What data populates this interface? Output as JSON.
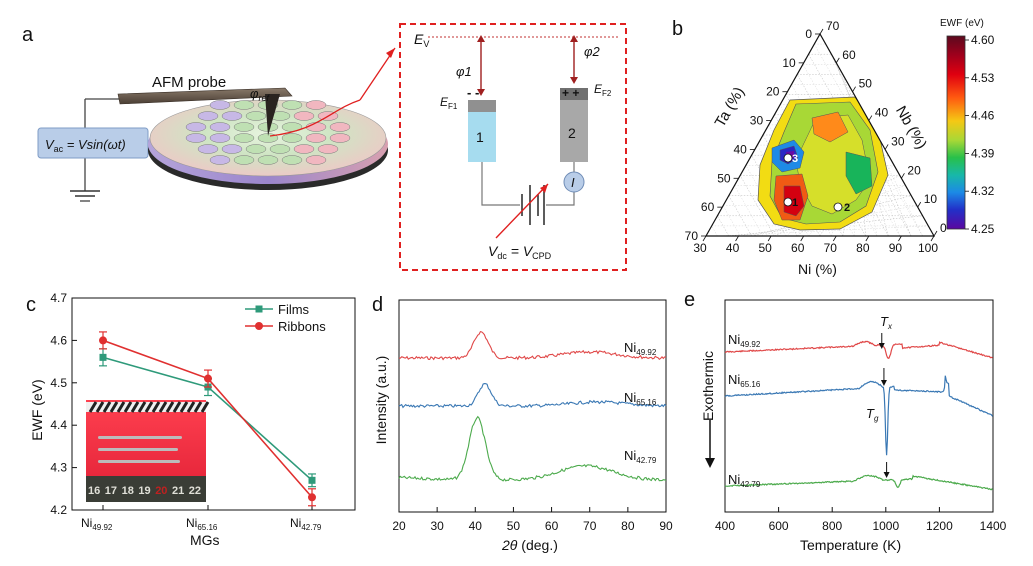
{
  "panels": {
    "a": {
      "letter": "a",
      "afm_probe": "AFM probe",
      "phi_ref": "φ",
      "phi_ref_sub": "ref",
      "vac_lhs": "V",
      "vac_lhs_sub": "ac",
      "vac_rhs": " = Vsin(ωt)",
      "ev": "E",
      "ev_sub": "V",
      "phi1": "φ1",
      "phi2": "φ2",
      "ef1": "E",
      "ef1_sub": "F1",
      "ef2": "E",
      "ef2_sub": "F2",
      "minus_signs": "- -",
      "plus_signs": "+ +",
      "block1": "1",
      "block2": "2",
      "current": "I",
      "vdc": "V",
      "vdc_sub": "dc",
      "vcpd_eq": " = V",
      "vcpd_sub": "CPD"
    },
    "b": {
      "letter": "b",
      "ta_label": "Ta (%)",
      "nb_label": "Nb (%)",
      "ni_label": "Ni (%)",
      "colorbar_title": "EWF (eV)",
      "colorbar_ticks": [
        "4.60",
        "4.53",
        "4.46",
        "4.39",
        "4.32",
        "4.25"
      ],
      "colorbar_values": [
        4.6,
        4.53,
        4.46,
        4.39,
        4.32,
        4.25
      ],
      "ni_ticks": [
        "30",
        "40",
        "50",
        "60",
        "70",
        "80",
        "90",
        "100"
      ],
      "ta_ticks": [
        "0",
        "10",
        "20",
        "30",
        "40",
        "50",
        "60",
        "70"
      ],
      "nb_ticks": [
        "70",
        "60",
        "50",
        "40",
        "30",
        "20",
        "10",
        "0"
      ],
      "points": [
        "1",
        "2",
        "3"
      ],
      "colors": [
        "#6a0d2e",
        "#c2002a",
        "#ff1c0e",
        "#ff7f1a",
        "#f2dc13",
        "#86d04a",
        "#18b45a",
        "#16b4c8",
        "#1e6ae6",
        "#2a26c4",
        "#5b0aa3"
      ]
    },
    "c": {
      "letter": "c",
      "chart_data": {
        "type": "line",
        "categories": [
          "Ni49.92",
          "Ni65.16",
          "Ni42.79"
        ],
        "category_labels": [
          {
            "main": "Ni",
            "sub": "49.92"
          },
          {
            "main": "Ni",
            "sub": "65.16"
          },
          {
            "main": "Ni",
            "sub": "42.79"
          }
        ],
        "series": [
          {
            "name": "Films",
            "values": [
              4.56,
              4.49,
              4.27
            ],
            "errors": [
              0.02,
              0.02,
              0.015
            ],
            "color": "#2e9a7a"
          },
          {
            "name": "Ribbons",
            "values": [
              4.6,
              4.51,
              4.23
            ],
            "errors": [
              0.02,
              0.02,
              0.02
            ],
            "color": "#e03030"
          }
        ],
        "xlabel": "MGs",
        "ylabel": "EWF (eV)",
        "ylim": [
          4.2,
          4.7
        ],
        "yticks": [
          "4.2",
          "4.3",
          "4.4",
          "4.5",
          "4.6",
          "4.7"
        ],
        "legend_position": "top-right"
      },
      "ruler_digits": [
        "16",
        "17",
        "18",
        "19",
        "20",
        "21",
        "22"
      ]
    },
    "d": {
      "letter": "d",
      "chart_data": {
        "type": "line",
        "xlabel_main": "2",
        "xlabel_theta": "θ",
        "xlabel_rest": " (deg.)",
        "ylabel": "Intensity (a.u.)",
        "xlim": [
          20,
          90
        ],
        "xticks": [
          "20",
          "30",
          "40",
          "50",
          "60",
          "70",
          "80",
          "90"
        ],
        "series": [
          {
            "name": "Ni49.92",
            "main": "Ni",
            "sub": "49.92",
            "color": "#e04848",
            "peak_x": 41.5,
            "peak2_x": 70
          },
          {
            "name": "Ni65.16",
            "main": "Ni",
            "sub": "65.16",
            "color": "#3a78b4",
            "peak_x": 42.5,
            "peak2_x": 72
          },
          {
            "name": "Ni42.79",
            "main": "Ni",
            "sub": "42.79",
            "color": "#4caa4c",
            "peak_x": 40.5,
            "peak2_x": 69
          }
        ]
      }
    },
    "e": {
      "letter": "e",
      "chart_data": {
        "type": "line",
        "xlabel": "Temperature (K)",
        "ylabel": "Exothermic",
        "xlim": [
          400,
          1400
        ],
        "xticks": [
          "400",
          "600",
          "800",
          "1000",
          "1200",
          "1400"
        ],
        "series": [
          {
            "name": "Ni49.92",
            "main": "Ni",
            "sub": "49.92",
            "color": "#e04848"
          },
          {
            "name": "Ni65.16",
            "main": "Ni",
            "sub": "65.16",
            "color": "#3a78b4"
          },
          {
            "name": "Ni42.79",
            "main": "Ni",
            "sub": "42.79",
            "color": "#4caa4c"
          }
        ],
        "annotations": [
          {
            "main": "T",
            "sub": "x"
          },
          {
            "main": "T",
            "sub": "g"
          }
        ]
      }
    }
  }
}
